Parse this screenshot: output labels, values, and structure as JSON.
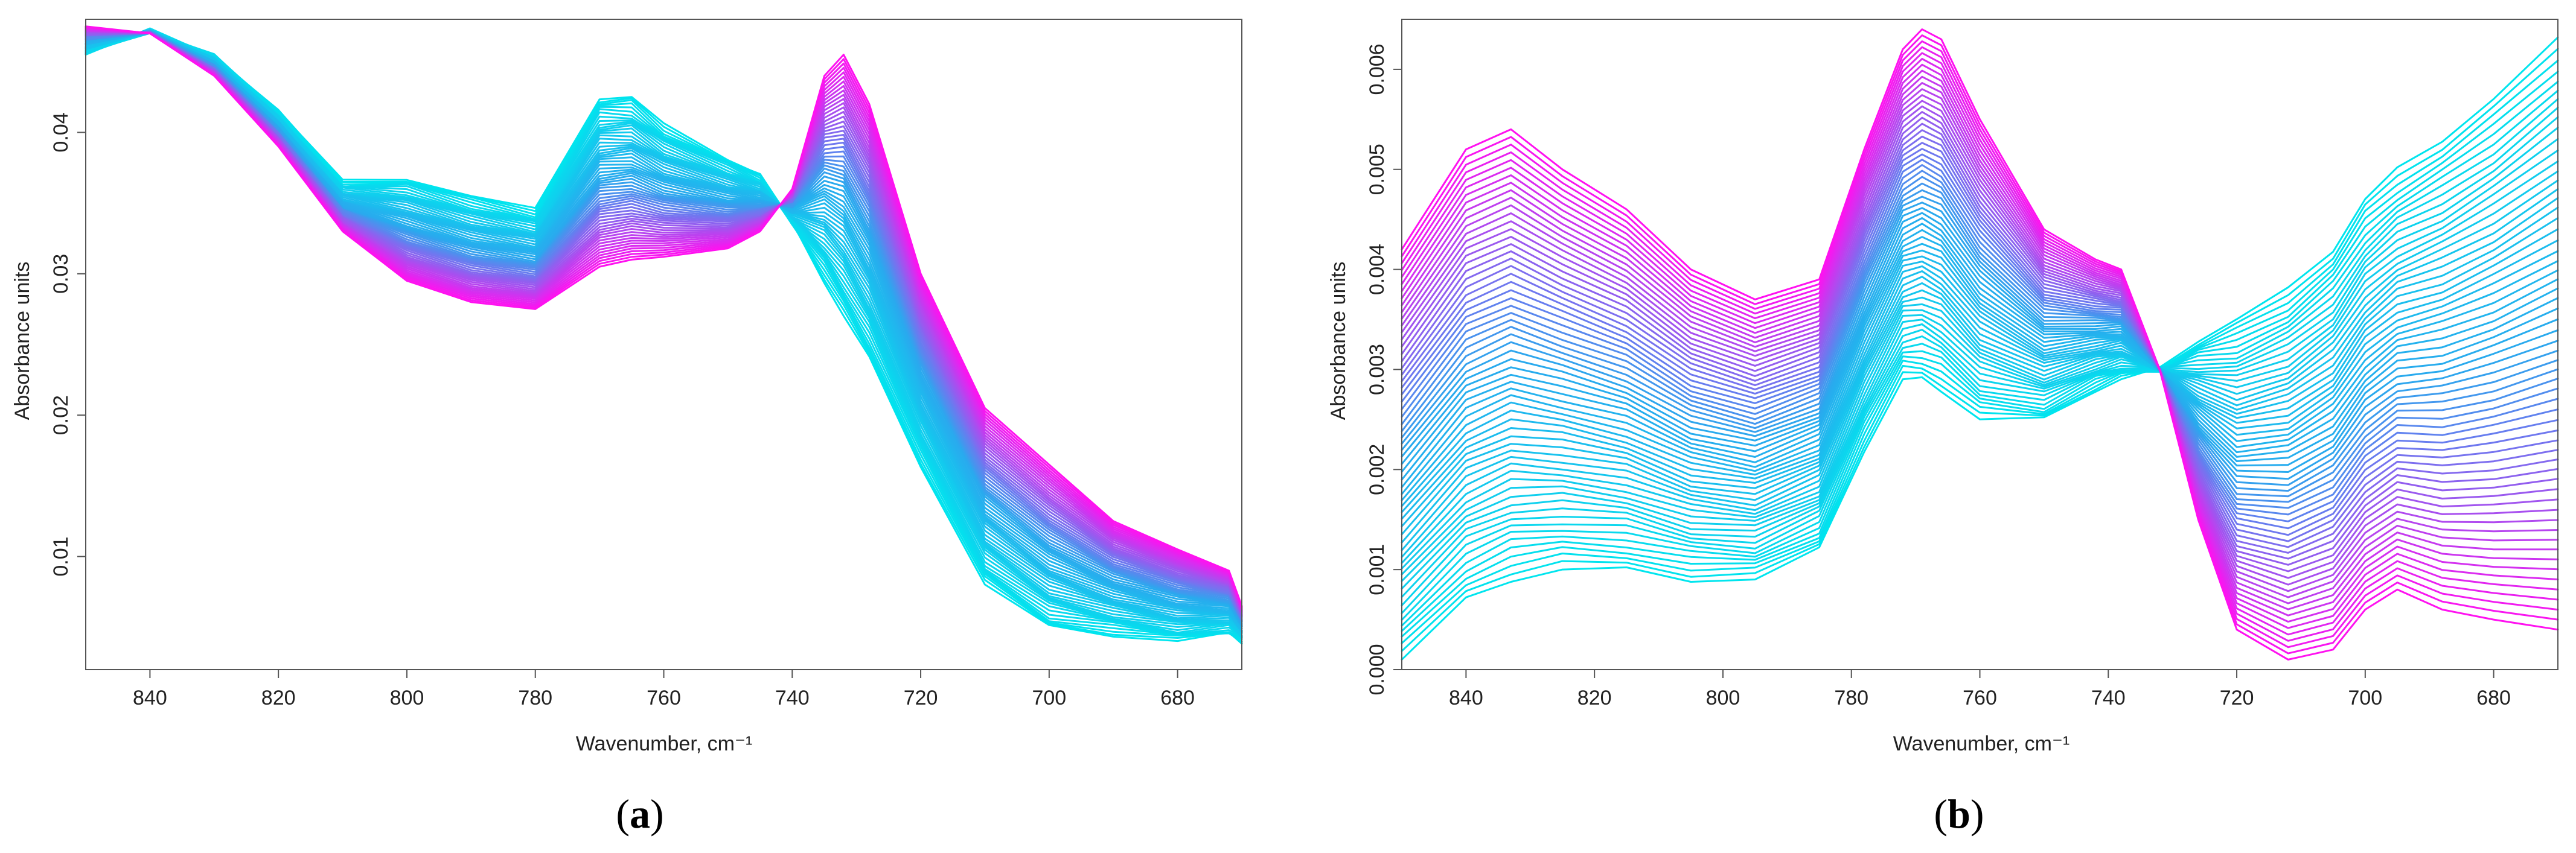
{
  "colors": {
    "start": "#00e5ee",
    "mid": "#2aa9ee",
    "end": "#ff11f0"
  },
  "chart_data": [
    {
      "type": "line",
      "panel_label": "a",
      "xlabel": "Wavenumber, cm⁻¹",
      "ylabel": "Absorbance units",
      "xlim": [
        850,
        670
      ],
      "ylim": [
        0.002,
        0.048
      ],
      "x_ticks": [
        840,
        820,
        800,
        780,
        760,
        740,
        720,
        700,
        680
      ],
      "x_tick_labels": [
        "840",
        "820",
        "800",
        "780",
        "760",
        "740",
        "720",
        "700",
        "680"
      ],
      "y_ticks": [
        0.01,
        0.02,
        0.03,
        0.04
      ],
      "y_tick_labels": [
        "0.01",
        "0.02",
        "0.03",
        "0.04"
      ],
      "series_count": 60,
      "x": [
        850,
        840,
        830,
        820,
        810,
        800,
        790,
        780,
        770,
        765,
        760,
        750,
        745,
        740,
        735,
        732,
        728,
        720,
        710,
        700,
        690,
        680,
        672,
        670
      ],
      "series_first": {
        "name": "first spectrum",
        "values": [
          0.0455,
          0.0472,
          0.0455,
          0.0415,
          0.0365,
          0.0368,
          0.0355,
          0.0345,
          0.0425,
          0.0425,
          0.0405,
          0.0382,
          0.037,
          0.0335,
          0.0295,
          0.027,
          0.024,
          0.0165,
          0.008,
          0.005,
          0.0045,
          0.004,
          0.0045,
          0.004
        ]
      },
      "series_last": {
        "name": "last spectrum",
        "values": [
          0.0475,
          0.047,
          0.044,
          0.039,
          0.033,
          0.0295,
          0.028,
          0.0275,
          0.0305,
          0.031,
          0.0312,
          0.0318,
          0.033,
          0.036,
          0.044,
          0.0455,
          0.042,
          0.03,
          0.0205,
          0.0165,
          0.0125,
          0.0105,
          0.009,
          0.0065
        ]
      }
    },
    {
      "type": "line",
      "panel_label": "b",
      "xlabel": "Wavenumber, cm⁻¹",
      "ylabel": "Absorbance units",
      "xlim": [
        850,
        670
      ],
      "ylim": [
        0,
        0.0065
      ],
      "x_ticks": [
        840,
        820,
        800,
        780,
        760,
        740,
        720,
        700,
        680
      ],
      "x_tick_labels": [
        "840",
        "820",
        "800",
        "780",
        "760",
        "740",
        "720",
        "700",
        "680"
      ],
      "y_ticks": [
        0,
        0.001,
        0.002,
        0.003,
        0.004,
        0.005,
        0.006
      ],
      "y_tick_labels": [
        "0.000",
        "0.001",
        "0.002",
        "0.003",
        "0.004",
        "0.005",
        "0.006"
      ],
      "series_count": 60,
      "x": [
        850,
        840,
        833,
        825,
        815,
        805,
        795,
        785,
        778,
        772,
        769,
        766,
        760,
        750,
        742,
        738,
        732,
        726,
        720,
        712,
        705,
        700,
        695,
        688,
        680,
        670
      ],
      "series_first": {
        "name": "first spectrum",
        "values": [
          0.0001,
          0.0007,
          0.0009,
          0.001,
          0.001,
          0.0009,
          0.0009,
          0.0012,
          0.0022,
          0.0029,
          0.0029,
          0.0028,
          0.0025,
          0.0025,
          0.0028,
          0.0029,
          0.003,
          0.0033,
          0.0035,
          0.0038,
          0.0042,
          0.0047,
          0.005,
          0.0053,
          0.0057,
          0.0063
        ]
      },
      "series_last": {
        "name": "last spectrum",
        "values": [
          0.0042,
          0.0052,
          0.0054,
          0.005,
          0.0046,
          0.004,
          0.0037,
          0.0039,
          0.0052,
          0.0062,
          0.0064,
          0.0063,
          0.0055,
          0.0044,
          0.0041,
          0.004,
          0.003,
          0.0015,
          0.0004,
          0.0001,
          0.0002,
          0.0006,
          0.0008,
          0.0006,
          0.0005,
          0.0004
        ]
      }
    }
  ]
}
